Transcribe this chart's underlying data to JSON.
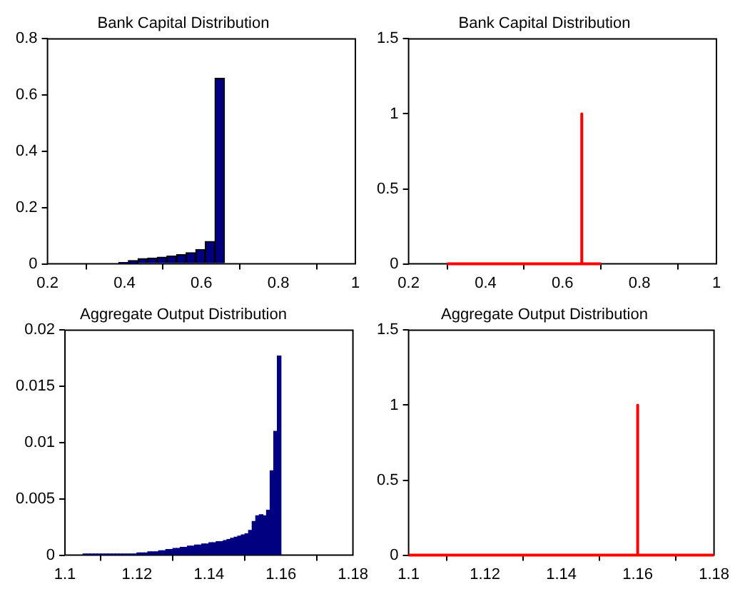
{
  "chart_data": [
    {
      "type": "histogram",
      "title": "Bank Capital Distribution",
      "bins": [
        0.385,
        0.41,
        0.435,
        0.46,
        0.485,
        0.51,
        0.535,
        0.56,
        0.585,
        0.61,
        0.635,
        0.66
      ],
      "values": [
        0.005,
        0.012,
        0.019,
        0.021,
        0.024,
        0.028,
        0.033,
        0.04,
        0.051,
        0.08,
        0.66
      ],
      "color": "#000080",
      "xlim": [
        0.2,
        1
      ],
      "xticks": [
        0.2,
        0.4,
        0.6,
        0.8,
        1
      ],
      "ylim": [
        0,
        0.8
      ],
      "yticks": [
        0,
        0.2,
        0.4,
        0.6,
        0.8
      ],
      "grid": false
    },
    {
      "type": "line",
      "title": "Bank Capital Distribution",
      "x": [
        0.3,
        0.65,
        0.65,
        0.65,
        0.7
      ],
      "values": [
        0,
        0,
        1,
        0,
        0
      ],
      "color": "#ff0000",
      "xlim": [
        0.2,
        1
      ],
      "xticks": [
        0.2,
        0.4,
        0.6,
        0.8,
        1
      ],
      "ylim": [
        0,
        1.5
      ],
      "yticks": [
        0,
        0.5,
        1,
        1.5
      ],
      "grid": false,
      "marker": "none"
    },
    {
      "type": "histogram",
      "title": "Aggregate Output Distribution",
      "bins": [
        1.105,
        1.106,
        1.107,
        1.108,
        1.109,
        1.11,
        1.111,
        1.112,
        1.113,
        1.114,
        1.115,
        1.116,
        1.117,
        1.118,
        1.119,
        1.12,
        1.121,
        1.122,
        1.123,
        1.124,
        1.125,
        1.126,
        1.127,
        1.128,
        1.129,
        1.13,
        1.131,
        1.132,
        1.133,
        1.134,
        1.135,
        1.136,
        1.137,
        1.138,
        1.139,
        1.14,
        1.141,
        1.142,
        1.143,
        1.144,
        1.145,
        1.146,
        1.147,
        1.148,
        1.149,
        1.15,
        1.151,
        1.152,
        1.153,
        1.154,
        1.155,
        1.156,
        1.157,
        1.158,
        1.159,
        1.16
      ],
      "values": [
        0.0001,
        0.0001,
        0.0001,
        0.0001,
        0.0001,
        0.0001,
        0.0001,
        0.0001,
        0.0001,
        0.0001,
        0.0001,
        0.0001,
        0.0001,
        0.0001,
        0.0001,
        0.0002,
        0.0002,
        0.0002,
        0.0003,
        0.0003,
        0.0003,
        0.0004,
        0.0004,
        0.0005,
        0.0005,
        0.0006,
        0.0006,
        0.0007,
        0.0007,
        0.0008,
        0.0008,
        0.0009,
        0.0009,
        0.001,
        0.001,
        0.0011,
        0.0011,
        0.0012,
        0.0012,
        0.0013,
        0.0014,
        0.0015,
        0.0016,
        0.0017,
        0.0018,
        0.0019,
        0.0022,
        0.003,
        0.0035,
        0.0036,
        0.0035,
        0.004,
        0.0075,
        0.011,
        0.0177
      ],
      "color": "#000080",
      "xlim": [
        1.1,
        1.18
      ],
      "xticks": [
        1.1,
        1.12,
        1.14,
        1.16,
        1.18
      ],
      "ylim": [
        0,
        0.02
      ],
      "yticks": [
        0,
        0.005,
        0.01,
        0.015,
        0.02
      ],
      "grid": false
    },
    {
      "type": "line",
      "title": "Aggregate Output Distribution",
      "x": [
        1.1,
        1.16,
        1.16,
        1.16,
        1.18
      ],
      "values": [
        0,
        0,
        1,
        0,
        0
      ],
      "color": "#ff0000",
      "xlim": [
        1.1,
        1.18
      ],
      "xticks": [
        1.1,
        1.12,
        1.14,
        1.16,
        1.18
      ],
      "ylim": [
        0,
        1.5
      ],
      "yticks": [
        0,
        0.5,
        1,
        1.5
      ],
      "grid": false,
      "marker": "none"
    }
  ]
}
